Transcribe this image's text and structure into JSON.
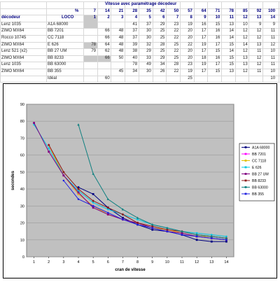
{
  "table": {
    "title": "Vitesse avec paramétrage décodeur",
    "percent_label": "%",
    "pcts": [
      "7",
      "14",
      "21",
      "28",
      "35",
      "42",
      "50",
      "57",
      "64",
      "71",
      "78",
      "85",
      "92",
      "100"
    ],
    "decoder_header": "décodeur",
    "loco_header": "LOCO",
    "steps": [
      "1",
      "2",
      "3",
      "4",
      "5",
      "6",
      "7",
      "8",
      "9",
      "10",
      "11",
      "12",
      "13",
      "14"
    ],
    "rows": [
      {
        "decoder": "Lenz 1035",
        "loco": "A1A 68000",
        "values": [
          "",
          "",
          "",
          "41",
          "37",
          "29",
          "23",
          "19",
          "16",
          "15",
          "13",
          "10",
          "9",
          "9"
        ]
      },
      {
        "decoder": "ZIMO MX64",
        "loco": "BB 7201",
        "values": [
          "",
          "66",
          "48",
          "37",
          "30",
          "25",
          "22",
          "20",
          "17",
          "16",
          "14",
          "12",
          "12",
          "11"
        ]
      },
      {
        "decoder": "Rocco 10745",
        "loco": "CC 7118",
        "values": [
          "",
          "66",
          "48",
          "37",
          "30",
          "25",
          "22",
          "20",
          "17",
          "16",
          "14",
          "12",
          "12",
          "11"
        ]
      },
      {
        "decoder": "ZIMO MX64",
        "loco": "E 626",
        "values": [
          "78",
          "64",
          "48",
          "39",
          "32",
          "28",
          "25",
          "22",
          "19",
          "17",
          "15",
          "14",
          "13",
          "12"
        ]
      },
      {
        "decoder": "Lenz 521 (x2)",
        "loco": "BB 27 UM",
        "values": [
          "79",
          "62",
          "48",
          "38",
          "29",
          "25",
          "22",
          "20",
          "17",
          "15",
          "14",
          "12",
          "11",
          "10"
        ]
      },
      {
        "decoder": "ZIMO MX64",
        "loco": "BB 8233",
        "values": [
          "",
          "66",
          "50",
          "40",
          "33",
          "29",
          "25",
          "20",
          "18",
          "16",
          "15",
          "13",
          "12",
          "11"
        ]
      },
      {
        "decoder": "Lenz 1035",
        "loco": "BB 63000",
        "values": [
          "",
          "",
          "",
          "78",
          "49",
          "34",
          "28",
          "23",
          "19",
          "17",
          "15",
          "13",
          "12",
          "11"
        ]
      },
      {
        "decoder": "ZIMO MX64",
        "loco": "BB 355",
        "values": [
          "",
          "",
          "45",
          "34",
          "30",
          "26",
          "22",
          "19",
          "17",
          "15",
          "13",
          "12",
          "11",
          "10"
        ]
      },
      {
        "decoder": "",
        "loco": "Idéal",
        "values": [
          "",
          "60",
          "",
          "",
          "",
          "",
          "",
          "25",
          "",
          "",
          "",
          "",
          "",
          "10"
        ]
      }
    ]
  },
  "chart_data": {
    "type": "line",
    "title": "",
    "xlabel": "cran de vitesse",
    "ylabel": "secondes",
    "x": [
      1,
      2,
      3,
      4,
      5,
      6,
      7,
      8,
      9,
      10,
      11,
      12,
      13,
      14
    ],
    "ylim": [
      0,
      90
    ],
    "yticks": [
      0,
      10,
      20,
      30,
      40,
      50,
      60,
      70,
      80,
      90
    ],
    "grid": true,
    "legend_position": "right",
    "series": [
      {
        "name": "A1A 68000",
        "color": "#000080",
        "values": [
          null,
          null,
          null,
          41,
          37,
          29,
          23,
          19,
          16,
          15,
          13,
          10,
          9,
          9
        ]
      },
      {
        "name": "BB 7201",
        "color": "#ff00ff",
        "values": [
          null,
          66,
          48,
          37,
          30,
          25,
          22,
          20,
          17,
          16,
          14,
          12,
          12,
          11
        ]
      },
      {
        "name": "CC 7118",
        "color": "#e0c000",
        "values": [
          null,
          66,
          48,
          37,
          30,
          25,
          22,
          20,
          17,
          16,
          14,
          12,
          12,
          11
        ]
      },
      {
        "name": "E 626",
        "color": "#00c8e0",
        "values": [
          78,
          64,
          48,
          39,
          32,
          28,
          25,
          22,
          19,
          17,
          15,
          14,
          13,
          12
        ]
      },
      {
        "name": "BB 27 UM",
        "color": "#800080",
        "values": [
          79,
          62,
          48,
          38,
          29,
          25,
          22,
          20,
          17,
          15,
          14,
          12,
          11,
          10
        ]
      },
      {
        "name": "BB 8233",
        "color": "#8b1a1a",
        "values": [
          null,
          66,
          50,
          40,
          33,
          29,
          25,
          20,
          18,
          16,
          15,
          13,
          12,
          11
        ]
      },
      {
        "name": "BB 63000",
        "color": "#108080",
        "values": [
          null,
          null,
          null,
          78,
          49,
          34,
          28,
          23,
          19,
          17,
          15,
          13,
          12,
          11
        ]
      },
      {
        "name": "BB 355",
        "color": "#2020e0",
        "values": [
          null,
          null,
          45,
          34,
          30,
          26,
          22,
          19,
          17,
          15,
          13,
          12,
          11,
          10
        ]
      }
    ]
  }
}
